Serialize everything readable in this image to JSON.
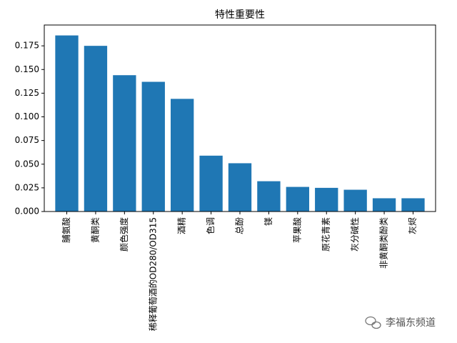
{
  "chart_data": {
    "type": "bar",
    "title": "特性重要性",
    "categories": [
      "脯氨酸",
      "黄酮类",
      "颜色强度",
      "稀释葡萄酒的OD280/OD315",
      "酒精",
      "色调",
      "总酚",
      "镁",
      "苹果酸",
      "原花青素",
      "灰分碱性",
      "非黄酮类酚类",
      "灰烬"
    ],
    "values": [
      0.186,
      0.175,
      0.144,
      0.137,
      0.119,
      0.059,
      0.051,
      0.032,
      0.026,
      0.025,
      0.023,
      0.014,
      0.014
    ],
    "color": "#1f77b4",
    "ylim": [
      0,
      0.197
    ],
    "yticks": [
      {
        "value": 0,
        "label": "0.000"
      },
      {
        "value": 0.025,
        "label": "0.025"
      },
      {
        "value": 0.05,
        "label": "0.050"
      },
      {
        "value": 0.075,
        "label": "0.075"
      },
      {
        "value": 0.1,
        "label": "0.100"
      },
      {
        "value": 0.125,
        "label": "0.125"
      },
      {
        "value": 0.15,
        "label": "0.150"
      },
      {
        "value": 0.175,
        "label": "0.175"
      }
    ],
    "grid": false,
    "watermark": "李福东频道"
  }
}
